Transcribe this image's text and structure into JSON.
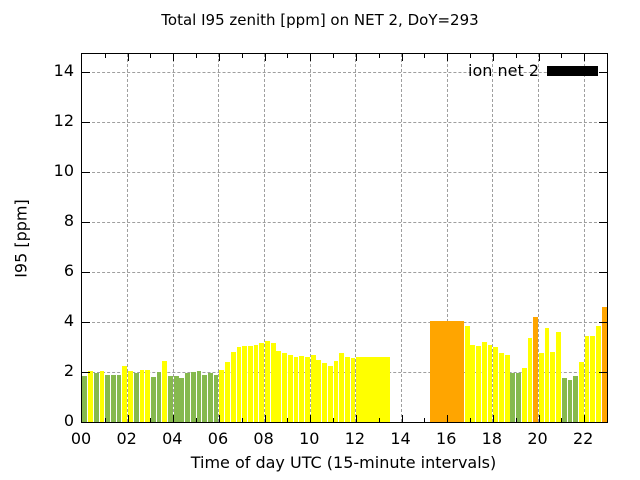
{
  "title": "Total I95 zenith [ppm] on NET 2, DoY=293",
  "legend": {
    "label": "ion net 2",
    "swatch_color": "#000000"
  },
  "chart_data": {
    "type": "bar",
    "title": "Total I95 zenith [ppm] on NET 2, DoY=293",
    "xlabel": "Time of day UTC (15-minute intervals)",
    "ylabel": "I95 [ppm]",
    "xlim": [
      0,
      23
    ],
    "ylim": [
      0,
      14.72
    ],
    "x_major_ticks": [
      0,
      2,
      4,
      6,
      8,
      10,
      12,
      14,
      16,
      18,
      20,
      22
    ],
    "x_tick_labels": [
      "00",
      "02",
      "04",
      "06",
      "08",
      "10",
      "12",
      "14",
      "16",
      "18",
      "20",
      "22"
    ],
    "x_minor_tick_every_hours": 1,
    "y_ticks": [
      0,
      2,
      4,
      6,
      8,
      10,
      12,
      14
    ],
    "grid": "dashed-gray-at-major-ticks",
    "legend_position": "top-right-inside",
    "legend_entries": [
      {
        "label": "ion net 2",
        "color": "#000000"
      }
    ],
    "bar_interval_hours": 0.25,
    "gap_intervals_no_data": {
      "from_hour": 13.5,
      "to_hour": 15.25
    },
    "colors": {
      "g": "#86b94e",
      "y": "#ffff00",
      "o": "#ffa500"
    },
    "bars_format": [
      "start_hour_utc",
      "i95_ppm",
      "color_key",
      "merge_with_next"
    ],
    "bars": [
      [
        0.0,
        1.85,
        "g"
      ],
      [
        0.25,
        2.05,
        "y"
      ],
      [
        0.5,
        1.95,
        "g"
      ],
      [
        0.75,
        2.05,
        "y"
      ],
      [
        1.0,
        1.9,
        "g"
      ],
      [
        1.25,
        1.9,
        "g"
      ],
      [
        1.5,
        1.9,
        "g"
      ],
      [
        1.75,
        2.25,
        "y"
      ],
      [
        2.0,
        2.05,
        "y"
      ],
      [
        2.25,
        1.95,
        "g"
      ],
      [
        2.5,
        2.1,
        "y"
      ],
      [
        2.75,
        2.1,
        "y"
      ],
      [
        3.0,
        1.8,
        "g"
      ],
      [
        3.25,
        2.0,
        "g"
      ],
      [
        3.5,
        2.45,
        "y"
      ],
      [
        3.75,
        1.85,
        "g"
      ],
      [
        4.0,
        1.85,
        "g"
      ],
      [
        4.25,
        1.75,
        "g"
      ],
      [
        4.5,
        1.95,
        "g"
      ],
      [
        4.75,
        2.0,
        "g"
      ],
      [
        5.0,
        2.05,
        "g"
      ],
      [
        5.25,
        1.9,
        "g"
      ],
      [
        5.5,
        1.95,
        "g"
      ],
      [
        5.75,
        1.9,
        "g"
      ],
      [
        6.0,
        2.1,
        "y"
      ],
      [
        6.25,
        2.4,
        "y"
      ],
      [
        6.5,
        2.8,
        "y"
      ],
      [
        6.75,
        3.0,
        "y"
      ],
      [
        7.0,
        3.05,
        "y"
      ],
      [
        7.25,
        3.05,
        "y"
      ],
      [
        7.5,
        3.1,
        "y"
      ],
      [
        7.75,
        3.15,
        "y"
      ],
      [
        8.0,
        3.25,
        "y"
      ],
      [
        8.25,
        3.15,
        "y"
      ],
      [
        8.5,
        2.85,
        "y"
      ],
      [
        8.75,
        2.75,
        "y"
      ],
      [
        9.0,
        2.7,
        "y"
      ],
      [
        9.25,
        2.6,
        "y"
      ],
      [
        9.5,
        2.65,
        "y"
      ],
      [
        9.75,
        2.6,
        "y"
      ],
      [
        10.0,
        2.7,
        "y"
      ],
      [
        10.25,
        2.5,
        "y"
      ],
      [
        10.5,
        2.35,
        "y"
      ],
      [
        10.75,
        2.25,
        "y"
      ],
      [
        11.0,
        2.45,
        "y"
      ],
      [
        11.25,
        2.75,
        "y"
      ],
      [
        11.5,
        2.6,
        "y"
      ],
      [
        11.75,
        2.55,
        "y"
      ],
      [
        12.0,
        2.6,
        "y",
        1
      ],
      [
        12.25,
        2.6,
        "y",
        1
      ],
      [
        12.5,
        2.6,
        "y",
        1
      ],
      [
        12.75,
        2.6,
        "y",
        1
      ],
      [
        13.0,
        2.6,
        "y",
        1
      ],
      [
        13.25,
        2.6,
        "y"
      ],
      [
        15.25,
        4.05,
        "o",
        1
      ],
      [
        15.5,
        4.05,
        "o",
        1
      ],
      [
        15.75,
        4.05,
        "o",
        1
      ],
      [
        16.0,
        4.05,
        "o",
        1
      ],
      [
        16.25,
        4.05,
        "o",
        1
      ],
      [
        16.5,
        4.05,
        "o"
      ],
      [
        16.75,
        3.85,
        "y"
      ],
      [
        17.0,
        3.1,
        "y"
      ],
      [
        17.25,
        3.05,
        "y"
      ],
      [
        17.5,
        3.2,
        "y"
      ],
      [
        17.75,
        3.1,
        "y"
      ],
      [
        18.0,
        3.0,
        "y"
      ],
      [
        18.25,
        2.75,
        "y"
      ],
      [
        18.5,
        2.7,
        "y"
      ],
      [
        18.75,
        1.95,
        "g"
      ],
      [
        19.0,
        1.95,
        "g"
      ],
      [
        19.25,
        2.15,
        "y"
      ],
      [
        19.5,
        3.35,
        "y"
      ],
      [
        19.75,
        4.2,
        "o"
      ],
      [
        20.0,
        2.75,
        "y"
      ],
      [
        20.25,
        3.75,
        "y"
      ],
      [
        20.5,
        2.8,
        "y"
      ],
      [
        20.75,
        3.6,
        "y"
      ],
      [
        21.0,
        1.75,
        "g"
      ],
      [
        21.25,
        1.7,
        "g"
      ],
      [
        21.5,
        1.85,
        "g"
      ],
      [
        21.75,
        2.4,
        "y"
      ],
      [
        22.0,
        3.45,
        "y"
      ],
      [
        22.25,
        3.45,
        "y"
      ],
      [
        22.5,
        3.85,
        "y"
      ],
      [
        22.75,
        4.6,
        "o"
      ]
    ]
  }
}
